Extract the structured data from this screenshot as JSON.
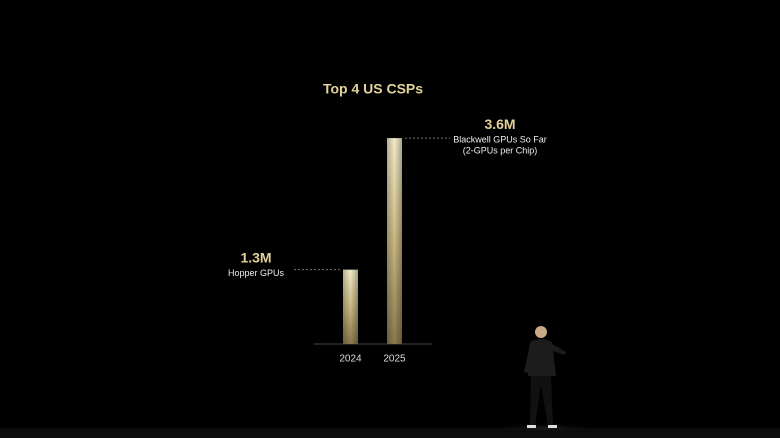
{
  "chart_data": {
    "type": "bar",
    "title": "Top 4 US CSPs",
    "categories": [
      "2024",
      "2025"
    ],
    "values": [
      1.3,
      3.6
    ],
    "value_labels": [
      "1.3M",
      "3.6M"
    ],
    "annotations": [
      [
        "Hopper GPUs"
      ],
      [
        "Blackwell GPUs So Far",
        "(2-GPUs per Chip)"
      ]
    ]
  }
}
